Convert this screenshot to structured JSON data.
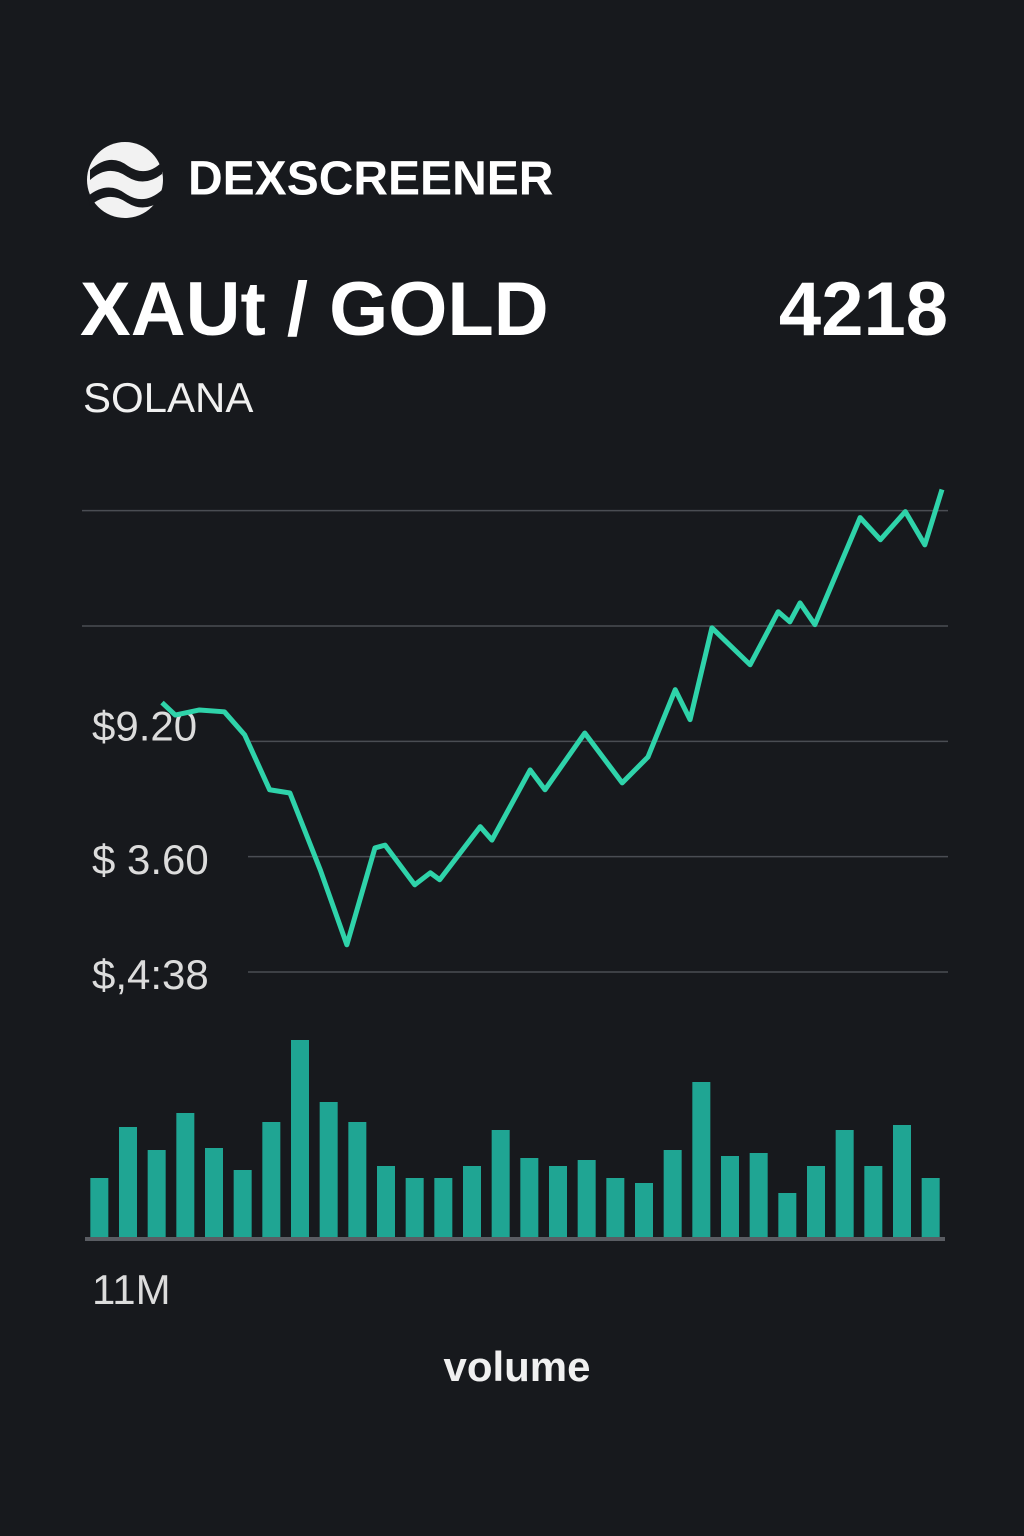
{
  "header": {
    "brand": "DEXSCREENER",
    "pair": "XAUt / GOLD",
    "price": "4218",
    "network": "SOLANA"
  },
  "chart_data": [
    {
      "type": "line",
      "color": "#2fd3aa",
      "x": [
        0,
        1.7,
        4.8,
        8.0,
        10.6,
        13.8,
        16.4,
        20.3,
        23.7,
        27.3,
        28.6,
        32.4,
        34.4,
        35.6,
        40.8,
        42.3,
        47.2,
        49.1,
        54.2,
        59.0,
        62.3,
        65.8,
        67.7,
        70.5,
        75.4,
        79.0,
        80.5,
        81.8,
        83.7,
        89.5,
        92.1,
        95.3,
        97.8,
        100
      ],
      "values": [
        58.4,
        55.7,
        56.8,
        56.4,
        51.4,
        39.5,
        38.8,
        22.1,
        5.9,
        26.9,
        27.5,
        18.9,
        21.5,
        20.0,
        31.5,
        28.6,
        43.8,
        39.5,
        51.8,
        41.0,
        46.6,
        61.2,
        54.7,
        74.6,
        66.6,
        78.1,
        75.9,
        80.0,
        75.3,
        98.5,
        93.7,
        99.8,
        92.6,
        104.6
      ],
      "xlim": [
        0,
        100
      ],
      "ylim": [
        0,
        106
      ],
      "yticks": [
        0,
        25,
        50,
        75,
        100
      ],
      "grid": true,
      "annotations": [
        "$9.20",
        "$ 3.60",
        "$,4:38"
      ]
    },
    {
      "type": "bar",
      "color": "#1fa593",
      "values": [
        59,
        110,
        87,
        124,
        89,
        67,
        115,
        197,
        135,
        115,
        71,
        59,
        59,
        71,
        107,
        79,
        71,
        77,
        59,
        54,
        87,
        155,
        81,
        84,
        44,
        71,
        107,
        71,
        112,
        59
      ],
      "ylim": [
        0,
        200
      ],
      "annotations": [
        "11M"
      ],
      "xlabel": "volume"
    }
  ]
}
